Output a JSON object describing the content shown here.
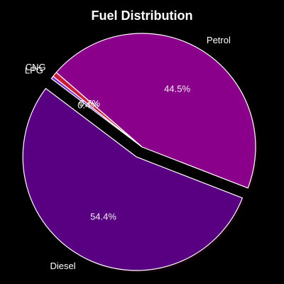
{
  "chart_data": {
    "type": "pie",
    "title": "Fuel Distribution",
    "start_angle_deg": 139,
    "direction": "clockwise",
    "slices": [
      {
        "label": "Petrol",
        "value": 44.5,
        "pct_label": "44.5%",
        "color": "#8b008b",
        "exploded": false
      },
      {
        "label": "Diesel",
        "value": 54.4,
        "pct_label": "54.4%",
        "color": "#580081",
        "exploded": true
      },
      {
        "label": "LPG",
        "value": 0.4,
        "pct_label": "0.4%",
        "color": "#7b2fd0",
        "exploded": false
      },
      {
        "label": "CNG",
        "value": 0.7,
        "pct_label": "0.7%",
        "color": "#c81e3c",
        "exploded": false
      }
    ],
    "edge_color": "#ffffff",
    "background": "#000000"
  }
}
